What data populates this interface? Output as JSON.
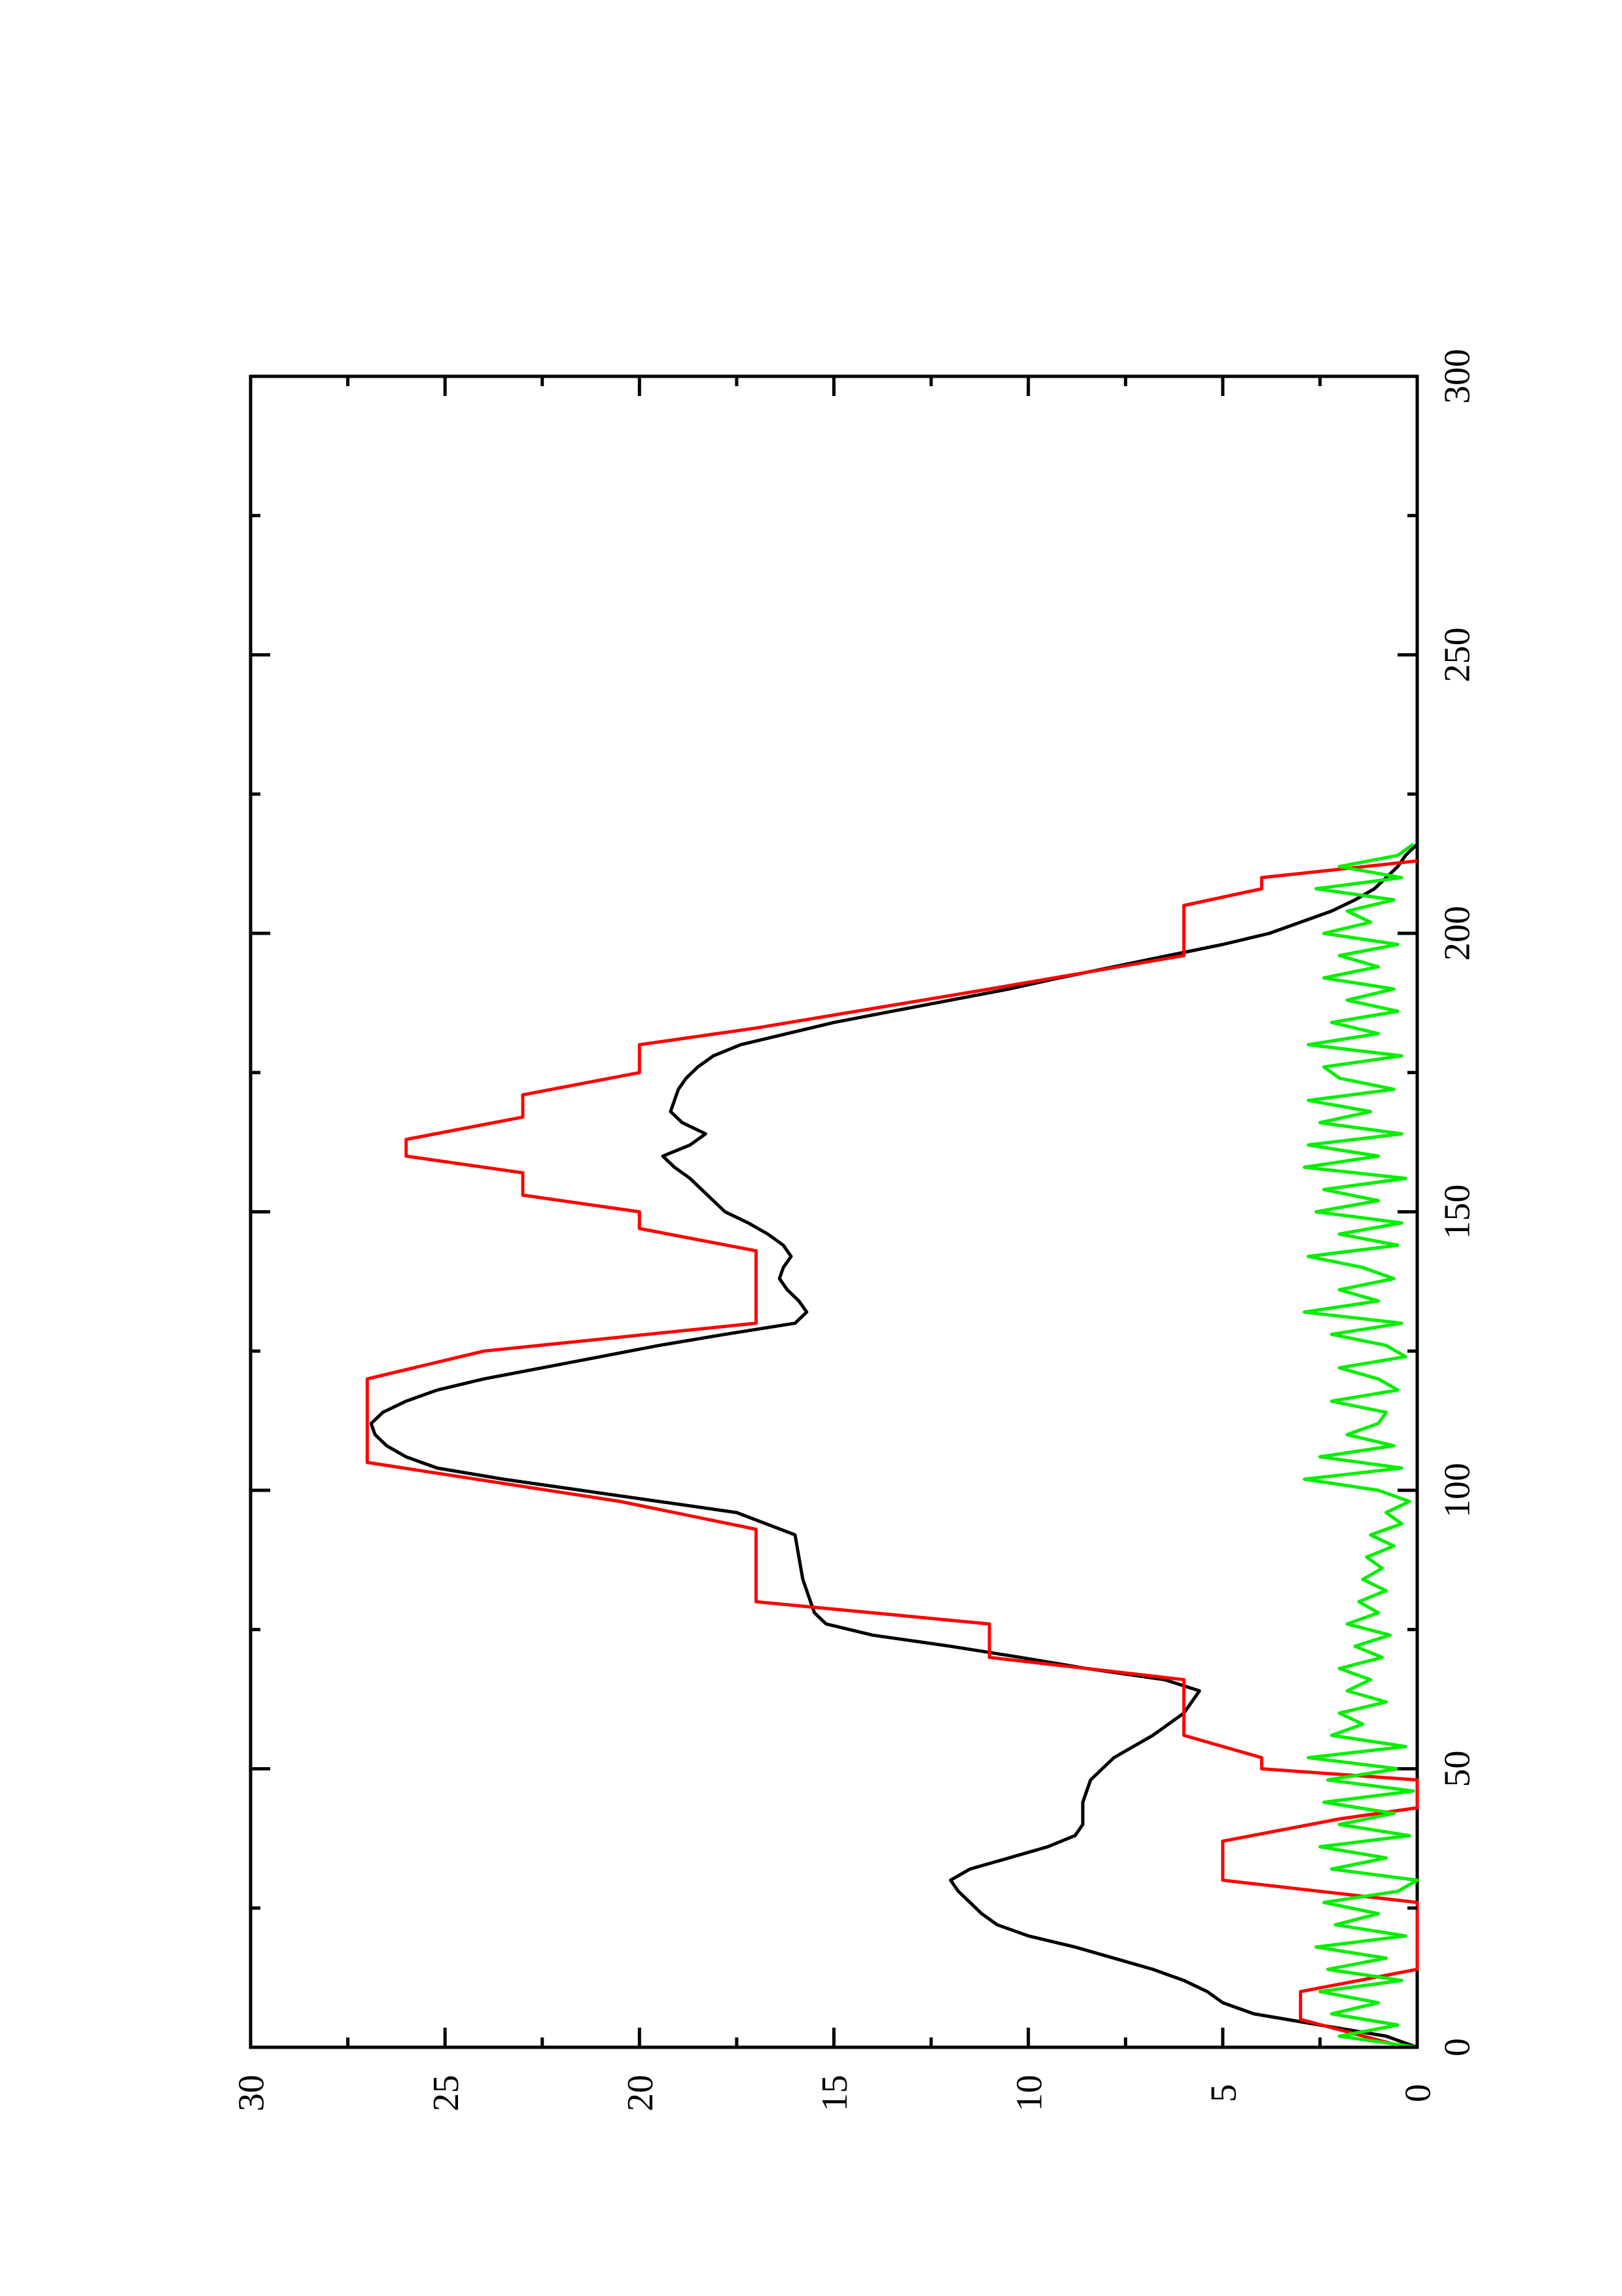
{
  "chart_data": {
    "type": "line",
    "orientation": "rotated-90-ccw",
    "title": "",
    "xlabel": "",
    "ylabel": "",
    "xlim": [
      0,
      300
    ],
    "ylim": [
      0,
      30
    ],
    "x_ticks": [
      0,
      50,
      100,
      150,
      200,
      250,
      300
    ],
    "y_ticks": [
      0,
      5,
      10,
      15,
      20,
      25,
      30
    ],
    "grid": false,
    "legend": "none",
    "series": [
      {
        "color": "#000000",
        "x": [
          0,
          2,
          4,
          6,
          8,
          10,
          12,
          14,
          16,
          18,
          20,
          22,
          24,
          26,
          28,
          30,
          32,
          34,
          36,
          38,
          40,
          44,
          48,
          52,
          56,
          60,
          62,
          64,
          66,
          68,
          70,
          72,
          74,
          76,
          78,
          80,
          84,
          88,
          92,
          96,
          98,
          100,
          102,
          104,
          106,
          108,
          110,
          112,
          114,
          116,
          118,
          120,
          122,
          124,
          126,
          128,
          130,
          132,
          134,
          136,
          138,
          140,
          142,
          144,
          146,
          148,
          150,
          152,
          154,
          156,
          158,
          160,
          162,
          164,
          166,
          168,
          170,
          172,
          174,
          176,
          178,
          180,
          182,
          184,
          186,
          188,
          190,
          192,
          194,
          196,
          198,
          200,
          202,
          204,
          206,
          208,
          210,
          212,
          214,
          216
        ],
        "values": [
          0,
          0.8,
          2.5,
          4.2,
          5.0,
          5.4,
          6.0,
          6.8,
          7.8,
          8.8,
          10.0,
          10.8,
          11.2,
          11.5,
          11.8,
          12.0,
          11.5,
          10.5,
          9.5,
          8.8,
          8.6,
          8.6,
          8.4,
          7.8,
          6.8,
          6.0,
          5.8,
          5.6,
          6.5,
          8.5,
          10.2,
          12.0,
          14.0,
          15.2,
          15.5,
          15.6,
          15.8,
          15.9,
          16.0,
          17.5,
          19.5,
          21.5,
          23.5,
          25.2,
          26.0,
          26.5,
          26.8,
          26.9,
          26.6,
          26.0,
          25.2,
          24.0,
          22.5,
          21.0,
          19.5,
          17.8,
          16.0,
          15.7,
          15.9,
          16.2,
          16.4,
          16.3,
          16.1,
          16.3,
          16.7,
          17.2,
          17.8,
          18.1,
          18.4,
          18.7,
          19.1,
          19.4,
          18.7,
          18.3,
          18.9,
          19.2,
          19.1,
          19.0,
          18.8,
          18.5,
          18.1,
          17.4,
          16.2,
          15.0,
          13.5,
          12.0,
          10.5,
          9.2,
          7.8,
          6.4,
          5.0,
          3.8,
          3.0,
          2.2,
          1.6,
          1.1,
          0.8,
          0.5,
          0.3,
          0.0
        ]
      },
      {
        "color": "#ff0000",
        "x": [
          0,
          5,
          10,
          12,
          14,
          26,
          30,
          34,
          37,
          41,
          43,
          48,
          50,
          52,
          56,
          64,
          66,
          70,
          76,
          80,
          86,
          93,
          98,
          105,
          110,
          115,
          120,
          125,
          130,
          135,
          140,
          143,
          147,
          150,
          153,
          157,
          160,
          163,
          167,
          171,
          175,
          180,
          183,
          190,
          196,
          205,
          208,
          210,
          213
        ],
        "values": [
          0.3,
          3,
          3,
          1.5,
          0,
          0,
          5,
          5,
          5,
          2,
          0,
          0,
          4,
          4,
          6,
          6,
          6,
          11,
          11,
          17,
          17,
          17,
          20.5,
          27,
          27,
          27,
          27,
          24,
          17,
          17,
          17,
          17,
          20,
          20,
          23,
          23,
          26,
          26,
          23,
          23,
          20,
          20,
          17,
          11,
          6,
          6,
          4,
          4,
          0
        ]
      },
      {
        "color": "#00ee00",
        "x": [
          0,
          2,
          4,
          6,
          8,
          10,
          12,
          14,
          16,
          18,
          20,
          22,
          24,
          26,
          28,
          30,
          32,
          34,
          36,
          38,
          40,
          42,
          44,
          46,
          48,
          50,
          52,
          54,
          56,
          58,
          60,
          62,
          64,
          66,
          68,
          70,
          72,
          74,
          76,
          78,
          80,
          82,
          84,
          86,
          88,
          90,
          92,
          94,
          96,
          98,
          100,
          102,
          104,
          106,
          108,
          110,
          112,
          114,
          116,
          118,
          120,
          122,
          124,
          126,
          128,
          130,
          132,
          134,
          136,
          138,
          140,
          142,
          144,
          146,
          148,
          150,
          152,
          154,
          156,
          158,
          160,
          162,
          164,
          166,
          168,
          170,
          172,
          174,
          176,
          178,
          180,
          182,
          184,
          186,
          188,
          190,
          192,
          194,
          196,
          198,
          200,
          202,
          204,
          206,
          208,
          210,
          212,
          214,
          216
        ],
        "values": [
          0,
          2.0,
          0.5,
          2.2,
          1.0,
          2.5,
          0.4,
          2.3,
          0.8,
          2.6,
          0.3,
          2.1,
          1.0,
          2.4,
          0.5,
          0,
          2.2,
          0.8,
          2.5,
          0.2,
          2.0,
          0.6,
          2.4,
          0.1,
          2.3,
          0.5,
          2.8,
          0.3,
          2.2,
          1.4,
          2.0,
          0.8,
          1.8,
          1.2,
          2.0,
          0.9,
          1.6,
          0.7,
          1.8,
          1.0,
          1.5,
          0.8,
          1.4,
          0.9,
          1.3,
          0.6,
          1.2,
          0.4,
          0.8,
          0.2,
          1.0,
          2.9,
          0.4,
          2.5,
          0.6,
          1.8,
          1.0,
          0.8,
          2.2,
          0.5,
          1.0,
          2.0,
          0.3,
          0.8,
          2.2,
          0.4,
          2.9,
          1.0,
          2.0,
          0.6,
          1.4,
          2.8,
          0.5,
          2.0,
          0.4,
          2.6,
          1.0,
          2.4,
          0.3,
          2.9,
          1.0,
          2.8,
          0.4,
          2.5,
          1.2,
          2.8,
          0.6,
          2.0,
          2.4,
          0.4,
          2.8,
          1.0,
          2.2,
          0.5,
          1.8,
          0.6,
          2.4,
          1.0,
          2.0,
          0.5,
          2.4,
          1.2,
          1.8,
          0.6,
          2.6,
          0.4,
          2.0,
          0.5,
          0.1
        ]
      }
    ]
  }
}
